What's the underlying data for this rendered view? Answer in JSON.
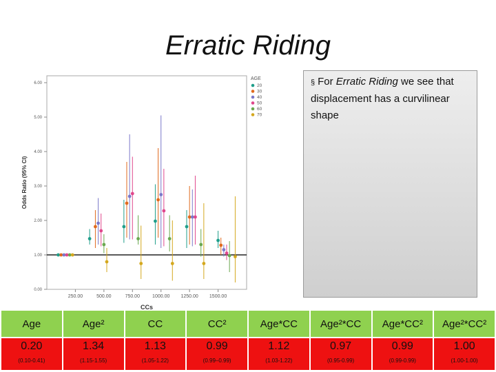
{
  "title": "Erratic Riding",
  "note": {
    "bullet": "§",
    "text_before": "For ",
    "text_italic": "Erratic Riding",
    "text_after": " we see that displacement has a curvilinear shape"
  },
  "chart_data": {
    "type": "scatter",
    "xlabel": "CCs",
    "ylabel": "Odds Ratio (95% CI)",
    "x_ticks": [
      "250.00",
      "500.00",
      "750.00",
      "1000.00",
      "1250.00",
      "1500.00"
    ],
    "y_ticks": [
      "0.00",
      "1.00",
      "2.00",
      "3.00",
      "4.00",
      "5.00",
      "6.00"
    ],
    "xlim": [
      0,
      1750
    ],
    "ylim": [
      0,
      6.2
    ],
    "reference_line": 1.0,
    "legend_title": "AGE",
    "legend_position": "top-right",
    "series": [
      {
        "name": "20",
        "color": "#1f9e8a",
        "points": [
          {
            "x": 100,
            "y": 1.0,
            "lo": 1.0,
            "hi": 1.0
          },
          {
            "x": 375,
            "y": 1.47,
            "lo": 1.3,
            "hi": 1.75
          },
          {
            "x": 675,
            "y": 1.82,
            "lo": 1.35,
            "hi": 2.6
          },
          {
            "x": 950,
            "y": 1.98,
            "lo": 1.3,
            "hi": 3.05
          },
          {
            "x": 1225,
            "y": 1.82,
            "lo": 1.2,
            "hi": 2.3
          },
          {
            "x": 1500,
            "y": 1.42,
            "lo": 1.2,
            "hi": 1.7
          }
        ]
      },
      {
        "name": "30",
        "color": "#e06a1e",
        "points": [
          {
            "x": 125,
            "y": 1.0,
            "lo": 1.0,
            "hi": 1.0
          },
          {
            "x": 425,
            "y": 1.82,
            "lo": 1.2,
            "hi": 2.3
          },
          {
            "x": 700,
            "y": 2.5,
            "lo": 1.5,
            "hi": 3.7
          },
          {
            "x": 975,
            "y": 2.6,
            "lo": 1.5,
            "hi": 4.1
          },
          {
            "x": 1250,
            "y": 2.1,
            "lo": 1.3,
            "hi": 3.0
          },
          {
            "x": 1525,
            "y": 1.28,
            "lo": 1.0,
            "hi": 1.5
          }
        ]
      },
      {
        "name": "40",
        "color": "#7b78c9",
        "points": [
          {
            "x": 150,
            "y": 1.0,
            "lo": 1.0,
            "hi": 1.0
          },
          {
            "x": 450,
            "y": 1.92,
            "lo": 1.3,
            "hi": 2.65
          },
          {
            "x": 725,
            "y": 2.7,
            "lo": 1.45,
            "hi": 4.5
          },
          {
            "x": 1000,
            "y": 2.75,
            "lo": 1.2,
            "hi": 5.05
          },
          {
            "x": 1275,
            "y": 2.1,
            "lo": 1.25,
            "hi": 2.9
          },
          {
            "x": 1550,
            "y": 1.15,
            "lo": 0.95,
            "hi": 1.3
          }
        ]
      },
      {
        "name": "50",
        "color": "#e0468c",
        "points": [
          {
            "x": 175,
            "y": 1.0,
            "lo": 1.0,
            "hi": 1.0
          },
          {
            "x": 475,
            "y": 1.7,
            "lo": 1.25,
            "hi": 2.2
          },
          {
            "x": 750,
            "y": 2.78,
            "lo": 1.45,
            "hi": 3.85
          },
          {
            "x": 1025,
            "y": 2.28,
            "lo": 1.25,
            "hi": 3.5
          },
          {
            "x": 1300,
            "y": 2.1,
            "lo": 1.3,
            "hi": 3.3
          },
          {
            "x": 1575,
            "y": 1.05,
            "lo": 0.85,
            "hi": 1.3
          }
        ]
      },
      {
        "name": "60",
        "color": "#6aa84f",
        "points": [
          {
            "x": 200,
            "y": 1.0,
            "lo": 1.0,
            "hi": 1.0
          },
          {
            "x": 500,
            "y": 1.3,
            "lo": 1.05,
            "hi": 1.6
          },
          {
            "x": 800,
            "y": 1.47,
            "lo": 1.3,
            "hi": 2.15
          },
          {
            "x": 1075,
            "y": 1.47,
            "lo": 1.1,
            "hi": 2.15
          },
          {
            "x": 1350,
            "y": 1.3,
            "lo": 0.95,
            "hi": 1.75
          },
          {
            "x": 1600,
            "y": 0.98,
            "lo": 0.5,
            "hi": 1.4
          }
        ]
      },
      {
        "name": "70",
        "color": "#d4a81e",
        "points": [
          {
            "x": 225,
            "y": 1.0,
            "lo": 1.0,
            "hi": 1.0
          },
          {
            "x": 525,
            "y": 0.8,
            "lo": 0.5,
            "hi": 1.2
          },
          {
            "x": 825,
            "y": 0.75,
            "lo": 0.3,
            "hi": 1.85
          },
          {
            "x": 1100,
            "y": 0.75,
            "lo": 0.25,
            "hi": 2.0
          },
          {
            "x": 1375,
            "y": 0.75,
            "lo": 0.3,
            "hi": 2.5
          },
          {
            "x": 1650,
            "y": 0.95,
            "lo": 0.2,
            "hi": 2.7
          }
        ]
      }
    ]
  },
  "table": {
    "headers": [
      "Age",
      "Age²",
      "CC",
      "CC²",
      "Age*CC",
      "Age²*CC",
      "Age*CC²",
      "Age²*CC²"
    ],
    "values": [
      "0.20",
      "1.34",
      "1.13",
      "0.99",
      "1.12",
      "0.97",
      "0.99",
      "1.00"
    ],
    "cis": [
      "(0.10-0.41)",
      "(1.15-1.55)",
      "(1.05-1.22)",
      "(0.99–0.99)",
      "(1.03-1.22)",
      "(0.95-0.99)",
      "(0.99-0.99)",
      "(1.00-1.00)"
    ]
  }
}
